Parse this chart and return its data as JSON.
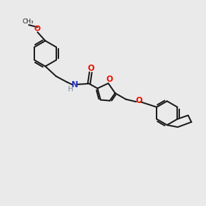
{
  "bg_color": "#eaeaea",
  "bond_color": "#1a1a1a",
  "o_color": "#ee1100",
  "n_color": "#2233bb",
  "h_color": "#778899",
  "line_width": 1.5,
  "figsize": [
    3.0,
    3.0
  ],
  "dpi": 100,
  "xlim": [
    0,
    10
  ],
  "ylim": [
    0,
    10
  ]
}
